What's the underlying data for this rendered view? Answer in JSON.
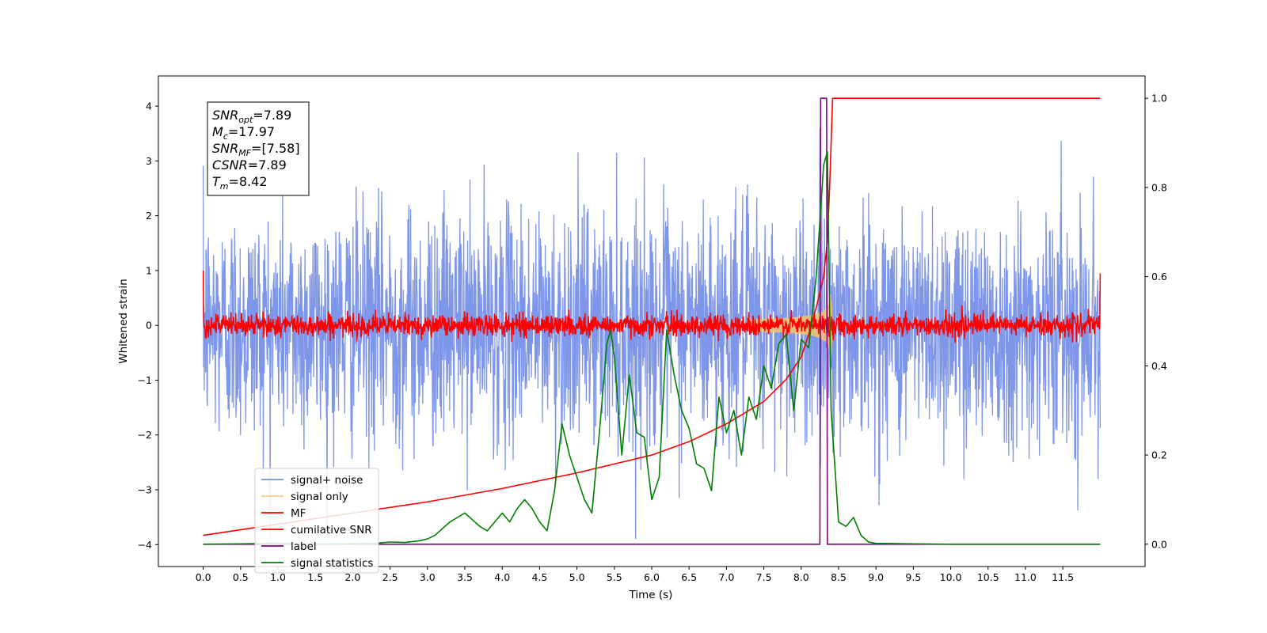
{
  "chart_data": {
    "type": "line",
    "xlabel": "Time (s)",
    "ylabel": "Whitened strain",
    "xlim": [
      -0.6,
      12.6
    ],
    "ylim": [
      -4.4,
      4.55
    ],
    "ylim_right": [
      -0.05,
      1.05
    ],
    "xticks": [
      0.0,
      0.5,
      1.0,
      1.5,
      2.0,
      2.5,
      3.0,
      3.5,
      4.0,
      4.5,
      5.0,
      5.5,
      6.0,
      6.5,
      7.0,
      7.5,
      8.0,
      8.5,
      9.0,
      9.5,
      10.0,
      10.5,
      11.0,
      11.5
    ],
    "xtick_labels": [
      "0.0",
      "0.5",
      "1.0",
      "1.5",
      "2.0",
      "2.5",
      "3.0",
      "3.5",
      "4.0",
      "4.5",
      "5.0",
      "5.5",
      "6.0",
      "6.5",
      "7.0",
      "7.5",
      "8.0",
      "8.5",
      "9.0",
      "9.5",
      "10.0",
      "10.5",
      "11.0",
      "11.5"
    ],
    "yticks_left": [
      -4,
      -3,
      -2,
      -1,
      0,
      1,
      2,
      3,
      4
    ],
    "ytick_labels_left": [
      "−4",
      "−3",
      "−2",
      "−1",
      "0",
      "1",
      "2",
      "3",
      "4"
    ],
    "yticks_right": [
      0.0,
      0.2,
      0.4,
      0.6,
      0.8,
      1.0
    ],
    "ytick_labels_right": [
      "0.0",
      "0.2",
      "0.4",
      "0.6",
      "0.8",
      "1.0"
    ],
    "grid": false,
    "legend_location": "lower-left",
    "annotation_box": {
      "lines": [
        {
          "main": "SNR",
          "sub": "opt",
          "rest": "=7.89"
        },
        {
          "main": "M",
          "sub": "c",
          "rest": "=17.97"
        },
        {
          "main": "SNR",
          "sub": "MF",
          "rest": "=[7.58]"
        },
        {
          "main": "CSNR",
          "sub": "",
          "rest": "=7.89"
        },
        {
          "main": "T",
          "sub": "m",
          "rest": "=8.42"
        }
      ]
    },
    "series": [
      {
        "name": "signal+ noise",
        "axis": "left",
        "color": "#7790e8",
        "kind": "noise",
        "x_range": [
          0.0,
          12.0
        ],
        "approx_std": 1.0,
        "approx_range": [
          -3.9,
          4.2
        ]
      },
      {
        "name": "signal only",
        "axis": "left",
        "color": "#f5c26b",
        "kind": "chirp",
        "x_range": [
          7.3,
          8.42
        ],
        "peak_amplitude": 0.6
      },
      {
        "name": "MF",
        "axis": "left",
        "color": "#ff0000",
        "kind": "noise",
        "x_range": [
          0.0,
          12.0
        ],
        "approx_std": 0.1,
        "start_value": 1.0,
        "end_value": 0.95
      },
      {
        "name": "cumilative SNR",
        "axis": "right",
        "color": "#ff0000",
        "x": [
          0.0,
          1.0,
          2.0,
          3.0,
          4.0,
          5.0,
          5.5,
          6.0,
          6.5,
          7.0,
          7.5,
          7.8,
          8.0,
          8.1,
          8.2,
          8.3,
          8.35,
          8.38,
          8.42,
          12.0
        ],
        "y": [
          0.02,
          0.045,
          0.07,
          0.095,
          0.125,
          0.16,
          0.18,
          0.2,
          0.23,
          0.27,
          0.32,
          0.37,
          0.42,
          0.47,
          0.53,
          0.6,
          0.68,
          0.8,
          1.0,
          1.0
        ]
      },
      {
        "name": "label",
        "axis": "right",
        "color": "#800080",
        "x": [
          0.0,
          8.25,
          8.26,
          8.34,
          8.35,
          12.0
        ],
        "y": [
          0.0,
          0.0,
          1.0,
          1.0,
          0.0,
          0.0
        ]
      },
      {
        "name": "signal statistics",
        "axis": "right",
        "color": "#008000",
        "x": [
          0.0,
          0.5,
          1.0,
          1.5,
          2.0,
          2.3,
          2.5,
          2.7,
          2.9,
          3.0,
          3.1,
          3.2,
          3.3,
          3.4,
          3.5,
          3.6,
          3.7,
          3.8,
          3.9,
          4.0,
          4.1,
          4.2,
          4.3,
          4.4,
          4.5,
          4.6,
          4.7,
          4.8,
          4.9,
          5.0,
          5.1,
          5.2,
          5.3,
          5.4,
          5.45,
          5.5,
          5.6,
          5.7,
          5.8,
          5.9,
          6.0,
          6.1,
          6.2,
          6.3,
          6.4,
          6.5,
          6.6,
          6.7,
          6.8,
          6.9,
          7.0,
          7.1,
          7.2,
          7.3,
          7.4,
          7.5,
          7.6,
          7.7,
          7.8,
          7.9,
          8.0,
          8.1,
          8.2,
          8.3,
          8.35,
          8.4,
          8.5,
          8.6,
          8.7,
          8.8,
          8.9,
          9.0,
          9.5,
          10.0,
          11.0,
          12.0
        ],
        "y": [
          0.0,
          0.001,
          0.002,
          0.0,
          0.001,
          0.002,
          0.005,
          0.004,
          0.008,
          0.012,
          0.02,
          0.035,
          0.05,
          0.06,
          0.07,
          0.055,
          0.04,
          0.03,
          0.05,
          0.07,
          0.05,
          0.08,
          0.1,
          0.08,
          0.05,
          0.03,
          0.12,
          0.27,
          0.2,
          0.15,
          0.1,
          0.07,
          0.25,
          0.45,
          0.48,
          0.42,
          0.2,
          0.38,
          0.25,
          0.24,
          0.1,
          0.15,
          0.48,
          0.38,
          0.3,
          0.26,
          0.18,
          0.17,
          0.12,
          0.33,
          0.25,
          0.3,
          0.2,
          0.33,
          0.28,
          0.4,
          0.35,
          0.45,
          0.47,
          0.3,
          0.46,
          0.44,
          0.6,
          0.85,
          0.88,
          0.3,
          0.05,
          0.04,
          0.06,
          0.02,
          0.005,
          0.002,
          0.001,
          0.0,
          0.0,
          0.0
        ]
      }
    ]
  }
}
